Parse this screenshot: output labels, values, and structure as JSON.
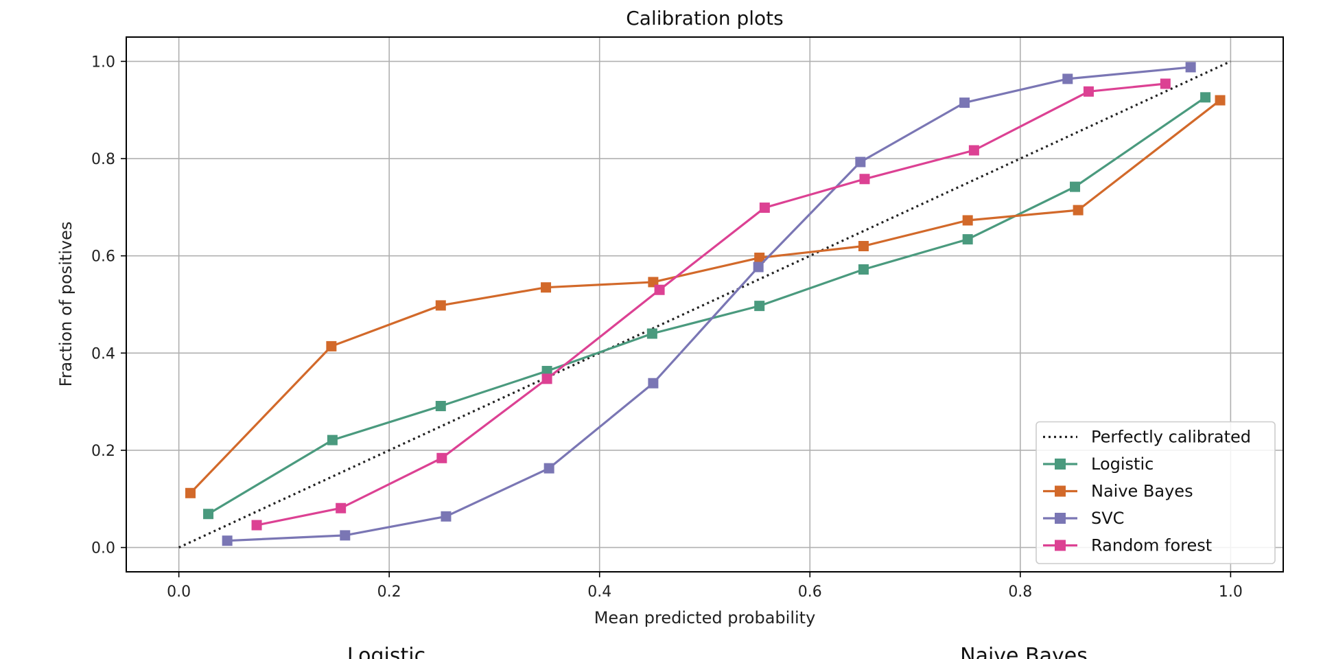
{
  "chart_data": {
    "type": "line",
    "title": "Calibration plots",
    "xlabel": "Mean predicted probability",
    "ylabel": "Fraction of positives",
    "xlim": [
      -0.05,
      1.05
    ],
    "ylim": [
      -0.05,
      1.05
    ],
    "xticks": [
      0.0,
      0.2,
      0.4,
      0.6,
      0.8,
      1.0
    ],
    "xtick_labels": [
      "0.0",
      "0.2",
      "0.4",
      "0.6",
      "0.8",
      "1.0"
    ],
    "yticks": [
      0.0,
      0.2,
      0.4,
      0.6,
      0.8,
      1.0
    ],
    "ytick_labels": [
      "0.0",
      "0.2",
      "0.4",
      "0.6",
      "0.8",
      "1.0"
    ],
    "grid": true,
    "legend_position": "lower-right",
    "reference": {
      "name": "Perfectly calibrated",
      "x": [
        0.0,
        1.0
      ],
      "y": [
        0.0,
        1.0
      ],
      "style": "dotted",
      "color": "#222222"
    },
    "series": [
      {
        "name": "Logistic",
        "color": "#4a9a7e",
        "marker": "square",
        "x": [
          0.028,
          0.146,
          0.249,
          0.35,
          0.45,
          0.552,
          0.651,
          0.75,
          0.852,
          0.976
        ],
        "y": [
          0.069,
          0.221,
          0.291,
          0.363,
          0.44,
          0.497,
          0.572,
          0.634,
          0.742,
          0.926
        ]
      },
      {
        "name": "Naive Bayes",
        "color": "#d2692a",
        "marker": "square",
        "x": [
          0.011,
          0.145,
          0.249,
          0.349,
          0.451,
          0.552,
          0.651,
          0.75,
          0.855,
          0.99
        ],
        "y": [
          0.112,
          0.414,
          0.498,
          0.535,
          0.546,
          0.596,
          0.62,
          0.673,
          0.694,
          0.92
        ]
      },
      {
        "name": "SVC",
        "color": "#7a76b4",
        "marker": "square",
        "x": [
          0.046,
          0.158,
          0.254,
          0.352,
          0.451,
          0.551,
          0.648,
          0.747,
          0.845,
          0.962
        ],
        "y": [
          0.014,
          0.025,
          0.064,
          0.163,
          0.338,
          0.577,
          0.793,
          0.915,
          0.964,
          0.988
        ]
      },
      {
        "name": "Random forest",
        "color": "#dc4193",
        "marker": "square",
        "x": [
          0.074,
          0.154,
          0.25,
          0.35,
          0.457,
          0.557,
          0.652,
          0.756,
          0.865,
          0.938
        ],
        "y": [
          0.046,
          0.081,
          0.184,
          0.347,
          0.53,
          0.699,
          0.758,
          0.817,
          0.938,
          0.954
        ]
      }
    ]
  },
  "subplot_titles": {
    "left": "Logistic",
    "right": "Naive Bayes"
  }
}
